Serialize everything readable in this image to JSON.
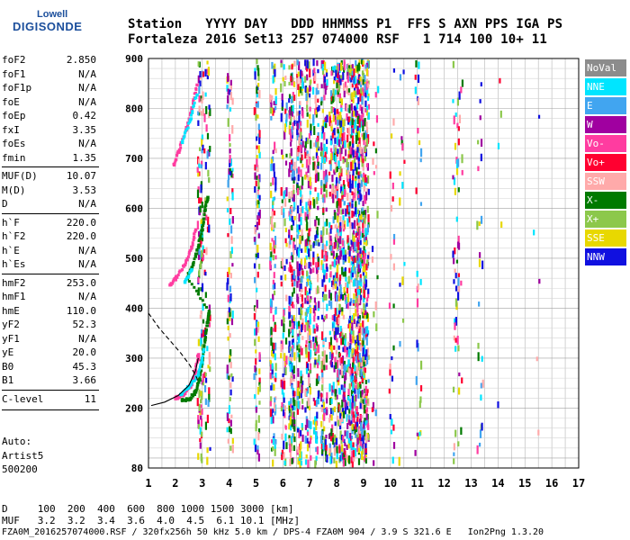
{
  "logo": {
    "line1": "Lowell",
    "line2": "DIGISONDE"
  },
  "header": {
    "line1": "Station   YYYY DAY   DDD HHMMSS P1  FFS S AXN PPS IGA PS",
    "line2": "Fortaleza 2016 Set13 257 074000 RSF   1 714 100 10+ 11"
  },
  "params": {
    "group1": [
      [
        "foF2",
        "2.850"
      ],
      [
        "foF1",
        "N/A"
      ],
      [
        "foF1p",
        "N/A"
      ],
      [
        "foE",
        "N/A"
      ],
      [
        "foEp",
        "0.42"
      ],
      [
        "fxI",
        "3.35"
      ],
      [
        "foEs",
        "N/A"
      ],
      [
        "fmin",
        "1.35"
      ]
    ],
    "group2": [
      [
        "MUF(D)",
        "10.07"
      ],
      [
        "M(D)",
        "3.53"
      ],
      [
        "D",
        "N/A"
      ]
    ],
    "group3": [
      [
        "h`F",
        "220.0"
      ],
      [
        "h`F2",
        "220.0"
      ],
      [
        "h`E",
        "N/A"
      ],
      [
        "h`Es",
        "N/A"
      ]
    ],
    "group4": [
      [
        "hmF2",
        "253.0"
      ],
      [
        "hmF1",
        "N/A"
      ],
      [
        "hmE",
        "110.0"
      ],
      [
        "yF2",
        "52.3"
      ],
      [
        "yF1",
        "N/A"
      ],
      [
        "yE",
        "20.0"
      ],
      [
        "B0",
        "45.3"
      ],
      [
        "B1",
        "3.66"
      ]
    ],
    "group5": [
      [
        "C-level",
        "11"
      ]
    ]
  },
  "auto": {
    "line1": "Auto:",
    "line2": "Artist5",
    "line3": "500200"
  },
  "bottom": {
    "d_line": "D     100  200  400  600  800 1000 1500 3000 [km]",
    "muf_line": "MUF   3.2  3.2  3.4  3.6  4.0  4.5  6.1 10.1 [MHz]",
    "file_line": "FZA0M_2016257074000.RSF / 320fx256h 50 kHz 5.0 km / DPS-4 FZA0M 904 / 3.9 S 321.6 E   Ion2Png 1.3.20"
  },
  "legend": [
    {
      "label": "NoVal",
      "color": "#8c8c8c"
    },
    {
      "label": "NNE",
      "color": "#00e5ff"
    },
    {
      "label": "E",
      "color": "#41a5f0"
    },
    {
      "label": "W",
      "color": "#a000a0"
    },
    {
      "label": "Vo-",
      "color": "#ff3ca0"
    },
    {
      "label": "Vo+",
      "color": "#ff0030"
    },
    {
      "label": "SSW",
      "color": "#ffaaaa"
    },
    {
      "label": "X-",
      "color": "#007a00"
    },
    {
      "label": "X+",
      "color": "#8cc84b"
    },
    {
      "label": "SSE",
      "color": "#e8d800"
    },
    {
      "label": "NNW",
      "color": "#1010e0"
    }
  ],
  "chart_data": {
    "type": "scatter",
    "title": "",
    "xlabel": "",
    "ylabel": "",
    "xlim": [
      1,
      17
    ],
    "ylim": [
      80,
      900
    ],
    "x_ticks": [
      1,
      2,
      3,
      4,
      5,
      6,
      7,
      8,
      9,
      10,
      11,
      12,
      13,
      14,
      15,
      16,
      17
    ],
    "y_ticks": [
      200,
      300,
      400,
      500,
      600,
      700,
      800,
      900
    ],
    "y_tick_labels_extra": [
      80
    ],
    "grid": true,
    "series": [
      {
        "name": "X-",
        "color": "#007a00",
        "points": [
          [
            2.2,
            218
          ],
          [
            2.5,
            222
          ],
          [
            2.7,
            235
          ],
          [
            2.85,
            260
          ],
          [
            2.95,
            300
          ],
          [
            3.05,
            340
          ],
          [
            3.15,
            375
          ],
          [
            3.2,
            395
          ],
          [
            2.4,
            465
          ],
          [
            2.6,
            490
          ],
          [
            2.8,
            525
          ],
          [
            2.95,
            560
          ],
          [
            3.05,
            600
          ],
          [
            3.15,
            625
          ]
        ]
      },
      {
        "name": "Vo-",
        "color": "#ff3ca0",
        "points": [
          [
            1.95,
            222
          ],
          [
            2.1,
            225
          ],
          [
            2.3,
            232
          ],
          [
            2.55,
            250
          ],
          [
            2.7,
            275
          ],
          [
            2.8,
            310
          ],
          [
            1.75,
            450
          ],
          [
            2.0,
            465
          ],
          [
            2.3,
            490
          ],
          [
            2.55,
            525
          ],
          [
            2.7,
            560
          ],
          [
            1.9,
            690
          ],
          [
            2.1,
            720
          ],
          [
            2.35,
            760
          ],
          [
            2.55,
            800
          ],
          [
            2.75,
            850
          ]
        ]
      },
      {
        "name": "NNE",
        "color": "#00e5ff",
        "points": [
          [
            2.15,
            230
          ],
          [
            2.45,
            245
          ],
          [
            2.8,
            270
          ],
          [
            3.0,
            320
          ],
          [
            2.3,
            455
          ],
          [
            2.55,
            480
          ],
          [
            2.2,
            735
          ],
          [
            2.5,
            780
          ],
          [
            2.75,
            830
          ]
        ]
      }
    ],
    "curves": [
      {
        "name": "profile",
        "style": "solid",
        "points": [
          [
            1.1,
            205
          ],
          [
            1.6,
            212
          ],
          [
            2.1,
            225
          ],
          [
            2.5,
            245
          ],
          [
            2.75,
            275
          ],
          [
            2.85,
            300
          ]
        ]
      },
      {
        "name": "model",
        "style": "dashed",
        "points": [
          [
            1.0,
            390
          ],
          [
            1.4,
            360
          ],
          [
            1.8,
            335
          ],
          [
            2.2,
            310
          ],
          [
            2.55,
            285
          ],
          [
            2.8,
            260
          ],
          [
            2.85,
            250
          ]
        ]
      }
    ]
  }
}
